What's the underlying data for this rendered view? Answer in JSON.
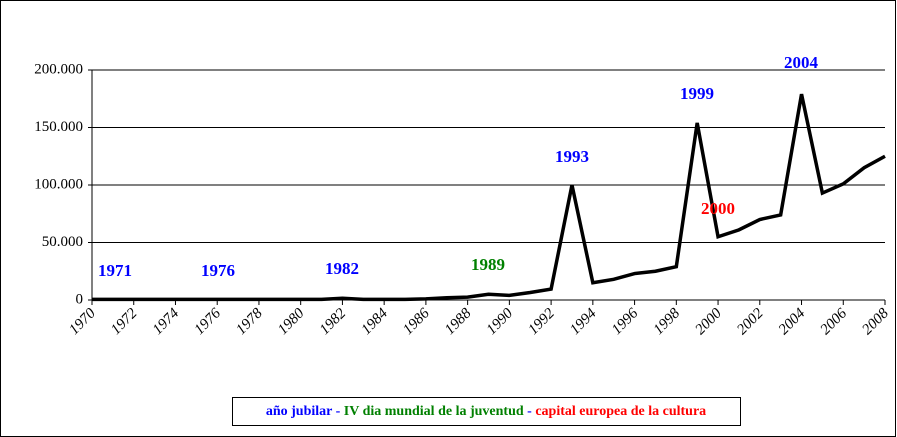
{
  "chart_data": {
    "type": "line",
    "x": [
      1970,
      1971,
      1972,
      1973,
      1974,
      1975,
      1976,
      1977,
      1978,
      1979,
      1980,
      1981,
      1982,
      1983,
      1984,
      1985,
      1986,
      1987,
      1988,
      1989,
      1990,
      1991,
      1992,
      1993,
      1994,
      1995,
      1996,
      1997,
      1998,
      1999,
      2000,
      2001,
      2002,
      2003,
      2004,
      2005,
      2006,
      2007,
      2008
    ],
    "series": [
      {
        "color": "#000000",
        "values": [
          500,
          500,
          500,
          500,
          500,
          500,
          500,
          500,
          500,
          500,
          500,
          500,
          1500,
          500,
          500,
          500,
          1000,
          2000,
          2500,
          5000,
          4000,
          6500,
          9500,
          100000,
          15000,
          18000,
          23000,
          25000,
          29000,
          154000,
          55000,
          61000,
          70000,
          74000,
          179000,
          93000,
          101000,
          115000,
          125000
        ]
      }
    ],
    "xlim": [
      1970,
      2008
    ],
    "xticks": [
      1970,
      1972,
      1974,
      1976,
      1978,
      1980,
      1982,
      1984,
      1986,
      1988,
      1990,
      1992,
      1994,
      1996,
      1998,
      2000,
      2002,
      2004,
      2006,
      2008
    ],
    "ylim": [
      0,
      200000
    ],
    "yticks": [
      0,
      {
        "value": 50000,
        "label": "50.000"
      },
      {
        "value": 100000,
        "label": "100.000"
      },
      {
        "value": 150000,
        "label": "150.000"
      },
      {
        "value": 200000,
        "label": "200.000"
      }
    ],
    "grid": true,
    "annotations": [
      {
        "text": "1971",
        "color": "#0000ff"
      },
      {
        "text": "1976",
        "color": "#0000ff"
      },
      {
        "text": "1982",
        "color": "#0000ff"
      },
      {
        "text": "1989",
        "color": "#008000"
      },
      {
        "text": "1993",
        "color": "#0000ff"
      },
      {
        "text": "1999",
        "color": "#0000ff"
      },
      {
        "text": "2000",
        "color": "#ff0000"
      },
      {
        "text": "2004",
        "color": "#0000ff"
      }
    ],
    "legend_items": [
      {
        "text": "año jubilar",
        "color": "#0000ff"
      },
      {
        "text": "IV dia mundial de la juventud",
        "color": "#008000"
      },
      {
        "text": "capital europea de la cultura",
        "color": "#ff0000"
      }
    ],
    "legend_separator": " - "
  }
}
